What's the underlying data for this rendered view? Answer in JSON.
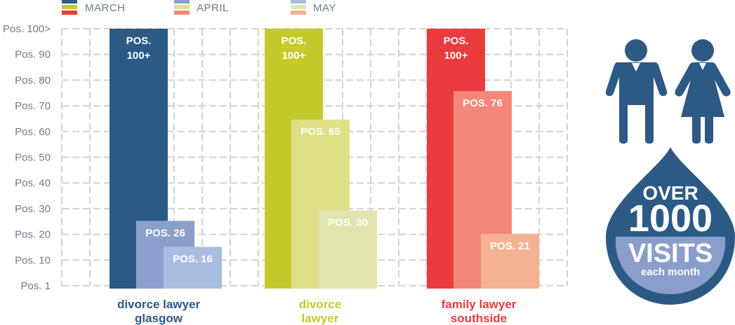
{
  "chart_data": {
    "type": "bar",
    "title": "",
    "xlabel": "",
    "ylabel": "",
    "y_ticks": [
      "Pos. 1",
      "Pos. 10",
      "Pos. 20",
      "Pos. 30",
      "Pos. 40",
      "Pos. 50",
      "Pos. 60",
      "Pos. 70",
      "Pos. 80",
      "Pos. 90",
      "Pos. 100>"
    ],
    "ylim": [
      1,
      100
    ],
    "grid": true,
    "legend_position": "top",
    "legend": [
      "MARCH",
      "APRIL",
      "MAY"
    ],
    "categories": [
      {
        "line1": "divorce lawyer",
        "line2": "glasgow",
        "color": "#2d5985",
        "bars": [
          {
            "series": "MARCH",
            "position": 100,
            "label1": "POS.",
            "label2": "100+",
            "color": "#2d5985"
          },
          {
            "series": "APRIL",
            "position": 26,
            "label1": "POS. 26",
            "label2": "",
            "color": "#8b9fcc"
          },
          {
            "series": "MAY",
            "position": 16,
            "label1": "POS. 16",
            "label2": "",
            "color": "#a9bde0"
          }
        ]
      },
      {
        "line1": "divorce",
        "line2": "lawyer",
        "color": "#c5ca2c",
        "bars": [
          {
            "series": "MARCH",
            "position": 100,
            "label1": "POS.",
            "label2": "100+",
            "color": "#c5ca2c"
          },
          {
            "series": "APRIL",
            "position": 65,
            "label1": "POS. 65",
            "label2": "",
            "color": "#dde087"
          },
          {
            "series": "MAY",
            "position": 30,
            "label1": "POS. 30",
            "label2": "",
            "color": "#e1e4ae"
          }
        ]
      },
      {
        "line1": "family lawyer",
        "line2": "southside",
        "color": "#ea3b3e",
        "bars": [
          {
            "series": "MARCH",
            "position": 100,
            "label1": "POS.",
            "label2": "100+",
            "color": "#ea3b3e"
          },
          {
            "series": "APRIL",
            "position": 76,
            "label1": "POS. 76",
            "label2": "",
            "color": "#f2877a"
          },
          {
            "series": "MAY",
            "position": 21,
            "label1": "POS. 21",
            "label2": "",
            "color": "#f5b192"
          }
        ]
      }
    ]
  },
  "legend": {
    "march": {
      "label": "MARCH",
      "colors": [
        "#2d5985",
        "#c5ca2c",
        "#ea3b3e"
      ]
    },
    "april": {
      "label": "APRIL",
      "colors": [
        "#8b9fcc",
        "#dde087",
        "#f2877a"
      ]
    },
    "may": {
      "label": "MAY",
      "colors": [
        "#a9bde0",
        "#e1e4ae",
        "#f5b192"
      ]
    }
  },
  "infographic": {
    "icons": [
      "man-icon",
      "woman-icon"
    ],
    "icon_color": "#2d5985",
    "over": "OVER",
    "number": "1000",
    "visits": "VISITS",
    "sub": "each month"
  }
}
